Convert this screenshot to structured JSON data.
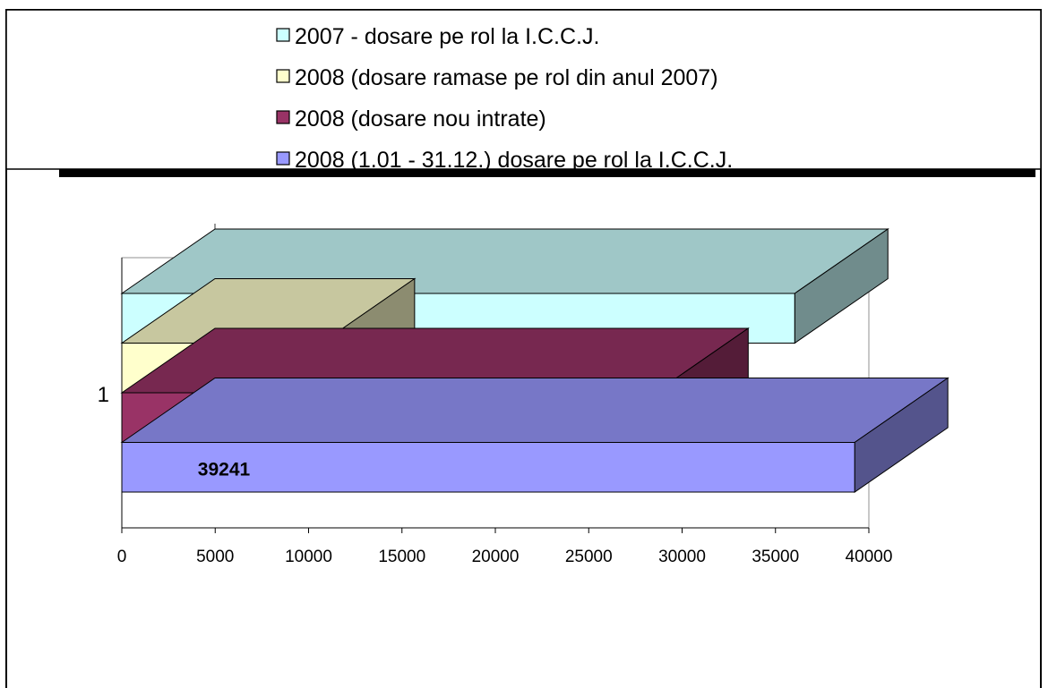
{
  "chart_data": {
    "type": "bar",
    "orientation": "horizontal",
    "three_d": true,
    "categories": [
      "1"
    ],
    "xlim": [
      0,
      40000
    ],
    "x_ticks": [
      0,
      5000,
      10000,
      15000,
      20000,
      25000,
      30000,
      35000,
      40000
    ],
    "grid": false,
    "legend_position": "top",
    "series": [
      {
        "name": "2007 - dosare pe rol la I.C.C.J.",
        "values": [
          36031
        ],
        "color": "#ccffff",
        "label": "36031"
      },
      {
        "name": "2008 (dosare ramase pe rol din anul 2007)",
        "values": [
          10689
        ],
        "color": "#ffffcc",
        "label": "10689"
      },
      {
        "name": "2008 (dosare nou intrate)",
        "values": [
          28552
        ],
        "color": "#993366",
        "label": "28552"
      },
      {
        "name": "2008 (1.01 - 31.12.) dosare pe rol la I.C.C.J.",
        "values": [
          39241
        ],
        "color": "#9999ff",
        "label": "39241"
      }
    ]
  }
}
